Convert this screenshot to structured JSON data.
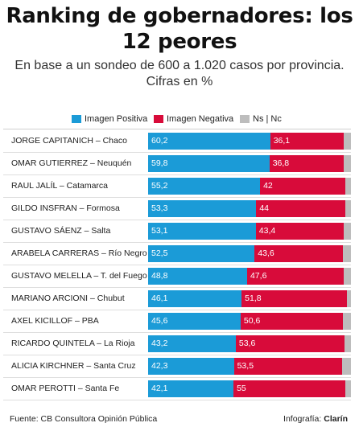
{
  "title": "Ranking de gobernadores: los 12 peores",
  "subtitle": "En base a un sondeo de 600 a 1.020 casos por provincia. Cifras en %",
  "legend": {
    "positive": "Imagen Positiva",
    "negative": "Imagen Negativa",
    "nsnc": "Ns | Nc"
  },
  "colors": {
    "positive": "#1b9bd7",
    "negative": "#d80b3a",
    "nsnc": "#bdbdbd"
  },
  "footer": {
    "source": "Fuente: CB Consultora Opinión Pública",
    "credit_prefix": "Infografía:",
    "credit_name": "Clarín"
  },
  "chart_data": {
    "type": "bar",
    "orientation": "horizontal",
    "stacked": true,
    "categories": [
      "JORGE CAPITANICH – Chaco",
      "OMAR GUTIERREZ – Neuquén",
      "RAUL JALÍL – Catamarca",
      "GILDO INSFRAN – Formosa",
      "GUSTAVO SÁENZ – Salta",
      "ARABELA CARRERAS – Río Negro",
      "GUSTAVO MELELLA – T. del Fuego",
      "MARIANO ARCIONI – Chubut",
      "AXEL KICILLOF – PBA",
      "RICARDO QUINTELA – La Rioja",
      "ALICIA KIRCHNER – Santa Cruz",
      "OMAR PEROTTI – Santa Fe"
    ],
    "series": [
      {
        "name": "Imagen Positiva",
        "values": [
          60.2,
          59.8,
          55.2,
          53.3,
          53.1,
          52.5,
          48.8,
          46.1,
          45.6,
          43.2,
          42.3,
          42.1
        ],
        "labels": [
          "60,2",
          "59,8",
          "55,2",
          "53,3",
          "53,1",
          "52,5",
          "48,8",
          "46,1",
          "45,6",
          "43,2",
          "42,3",
          "42,1"
        ]
      },
      {
        "name": "Imagen Negativa",
        "values": [
          36.1,
          36.8,
          42,
          44,
          43.4,
          43.6,
          47.6,
          51.8,
          50.6,
          53.6,
          53.5,
          55
        ],
        "labels": [
          "36,1",
          "36,8",
          "42",
          "44",
          "43,4",
          "43,6",
          "47,6",
          "51,8",
          "50,6",
          "53,6",
          "53,5",
          "55"
        ]
      },
      {
        "name": "Ns | Nc",
        "values": [
          3.7,
          3.4,
          2.8,
          2.7,
          3.5,
          3.9,
          3.6,
          2.1,
          3.8,
          3.2,
          4.2,
          2.9
        ]
      }
    ],
    "xlim": [
      0,
      100
    ]
  }
}
